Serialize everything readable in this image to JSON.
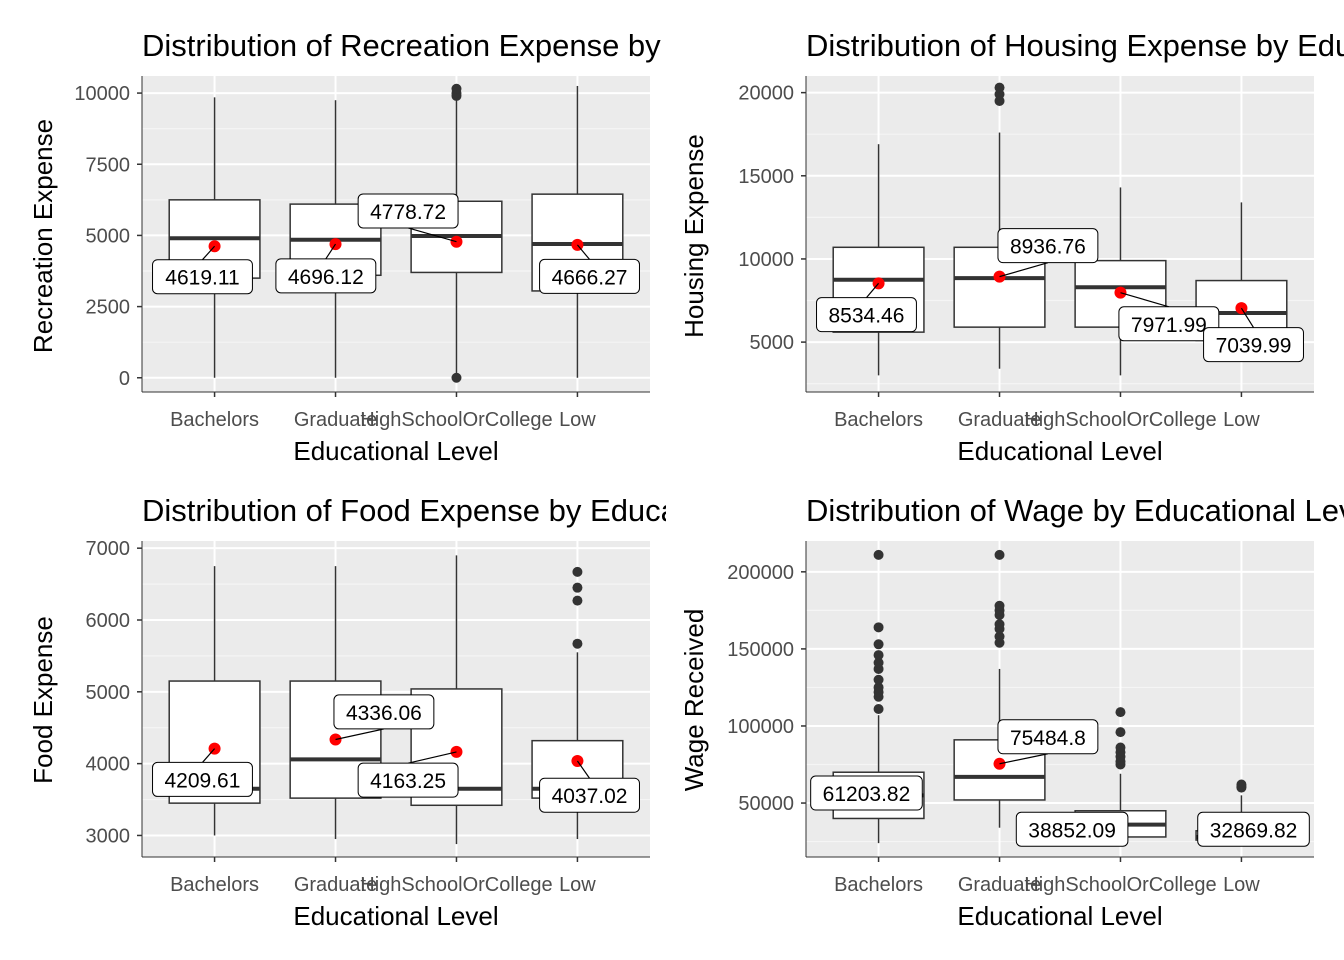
{
  "chart_data": [
    {
      "type": "box",
      "title": "Distribution of Recreation Expense by Educational Level",
      "xlabel": "Educational Level",
      "ylabel": "Recreation Expense",
      "categories": [
        "Bachelors",
        "Graduate",
        "HighSchoolOrCollege",
        "Low"
      ],
      "ylim": [
        -500,
        10600
      ],
      "yticks": [
        0,
        2500,
        5000,
        7500,
        10000
      ],
      "ytick_labels": [
        "0",
        "2500",
        "5000",
        "7500",
        "10000"
      ],
      "boxes": [
        {
          "min": 0,
          "q1": 3500,
          "median": 4900,
          "q3": 6250,
          "max": 9850,
          "outliers": []
        },
        {
          "min": 0,
          "q1": 3600,
          "median": 4850,
          "q3": 6100,
          "max": 9750,
          "outliers": []
        },
        {
          "min": 80,
          "q1": 3700,
          "median": 4980,
          "q3": 6200,
          "max": 9800,
          "outliers": [
            0,
            9900,
            10000,
            10150
          ]
        },
        {
          "min": 0,
          "q1": 3050,
          "median": 4700,
          "q3": 6450,
          "max": 10250,
          "outliers": []
        }
      ],
      "means": [
        4619.11,
        4696.12,
        4778.72,
        4666.27
      ],
      "mean_labels": [
        "4619.11",
        "4696.12",
        "4778.72",
        "4666.27"
      ],
      "mean_label_values": [
        3550,
        3580,
        5860,
        3560
      ],
      "mean_label_offsets": [
        -0.1,
        -0.08,
        -0.4,
        0.1
      ],
      "mean_color": "#ff0000"
    },
    {
      "type": "box",
      "title": "Distribution of Housing Expense by Educational Level",
      "xlabel": "Educational Level",
      "ylabel": "Housing Expense",
      "categories": [
        "Bachelors",
        "Graduate",
        "HighSchoolOrCollege",
        "Low"
      ],
      "ylim": [
        2000,
        21000
      ],
      "yticks": [
        5000,
        10000,
        15000,
        20000
      ],
      "ytick_labels": [
        "5000",
        "10000",
        "15000",
        "20000"
      ],
      "boxes": [
        {
          "min": 3000,
          "q1": 5600,
          "median": 8750,
          "q3": 10700,
          "max": 16900,
          "outliers": []
        },
        {
          "min": 3400,
          "q1": 5900,
          "median": 8850,
          "q3": 10700,
          "max": 17600,
          "outliers": [
            19500,
            19900,
            20300
          ]
        },
        {
          "min": 3000,
          "q1": 5900,
          "median": 8300,
          "q3": 9900,
          "max": 14300,
          "outliers": []
        },
        {
          "min": 4800,
          "q1": 5100,
          "median": 6750,
          "q3": 8700,
          "max": 13400,
          "outliers": []
        }
      ],
      "means": [
        8534.46,
        8936.76,
        7971.99,
        7039.99
      ],
      "mean_labels": [
        "8534.46",
        "8936.76",
        "7971.99",
        "7039.99"
      ],
      "mean_label_values": [
        6650,
        10800,
        6100,
        4850
      ],
      "mean_label_offsets": [
        -0.1,
        0.4,
        0.4,
        0.1
      ],
      "mean_color": "#ff0000"
    },
    {
      "type": "box",
      "title": "Distribution of Food Expense by Educational Level",
      "xlabel": "Educational Level",
      "ylabel": "Food Expense",
      "categories": [
        "Bachelors",
        "Graduate",
        "HighSchoolOrCollege",
        "Low"
      ],
      "ylim": [
        2700,
        7100
      ],
      "yticks": [
        3000,
        4000,
        5000,
        6000,
        7000
      ],
      "ytick_labels": [
        "3000",
        "4000",
        "5000",
        "6000",
        "7000"
      ],
      "boxes": [
        {
          "min": 3000,
          "q1": 3450,
          "median": 3650,
          "q3": 5150,
          "max": 6750,
          "outliers": []
        },
        {
          "min": 2950,
          "q1": 3520,
          "median": 4060,
          "q3": 5150,
          "max": 6750,
          "outliers": []
        },
        {
          "min": 2880,
          "q1": 3420,
          "median": 3650,
          "q3": 5040,
          "max": 6900,
          "outliers": []
        },
        {
          "min": 2950,
          "q1": 3520,
          "median": 3650,
          "q3": 4320,
          "max": 5550,
          "outliers": [
            5670,
            6270,
            6450,
            6670
          ]
        }
      ],
      "means": [
        4209.61,
        4336.06,
        4163.25,
        4037.02
      ],
      "mean_labels": [
        "4209.61",
        "4336.06",
        "4163.25",
        "4037.02"
      ],
      "mean_label_values": [
        3780,
        4720,
        3770,
        3560
      ],
      "mean_label_offsets": [
        -0.1,
        0.4,
        -0.4,
        0.1
      ],
      "mean_color": "#ff0000"
    },
    {
      "type": "box",
      "title": "Distribution of Wage by Educational Level",
      "xlabel": "Educational Level",
      "ylabel": "Wage Received",
      "categories": [
        "Bachelors",
        "Graduate",
        "HighSchoolOrCollege",
        "Low"
      ],
      "ylim": [
        15000,
        220000
      ],
      "yticks": [
        50000,
        100000,
        150000,
        200000
      ],
      "ytick_labels": [
        "50000",
        "100000",
        "150000",
        "200000"
      ],
      "boxes": [
        {
          "min": 24000,
          "q1": 40000,
          "median": 55000,
          "q3": 70000,
          "max": 107000,
          "outliers": [
            111000,
            119000,
            122000,
            125000,
            130000,
            137000,
            141000,
            146000,
            153000,
            164000,
            211000
          ]
        },
        {
          "min": 34000,
          "q1": 52000,
          "median": 67000,
          "q3": 91000,
          "max": 137000,
          "outliers": [
            154000,
            158000,
            163000,
            166000,
            172000,
            175000,
            178000,
            211000
          ]
        },
        {
          "min": 24000,
          "q1": 28000,
          "median": 36000,
          "q3": 45000,
          "max": 69000,
          "outliers": [
            75000,
            77000,
            80000,
            83000,
            86000,
            96000,
            109000
          ]
        },
        {
          "min": 24000,
          "q1": 26000,
          "median": 28000,
          "q3": 32000,
          "max": 55000,
          "outliers": [
            60000,
            61000,
            62000
          ]
        }
      ],
      "means": [
        61203.82,
        75484.8,
        38852.09,
        32869.82
      ],
      "mean_labels": [
        "61203.82",
        "75484.8",
        "38852.09",
        "32869.82"
      ],
      "mean_label_values": [
        56500,
        93000,
        33000,
        33000
      ],
      "mean_label_offsets": [
        -0.1,
        0.4,
        -0.4,
        0.1
      ],
      "mean_color": "#ff0000"
    }
  ]
}
